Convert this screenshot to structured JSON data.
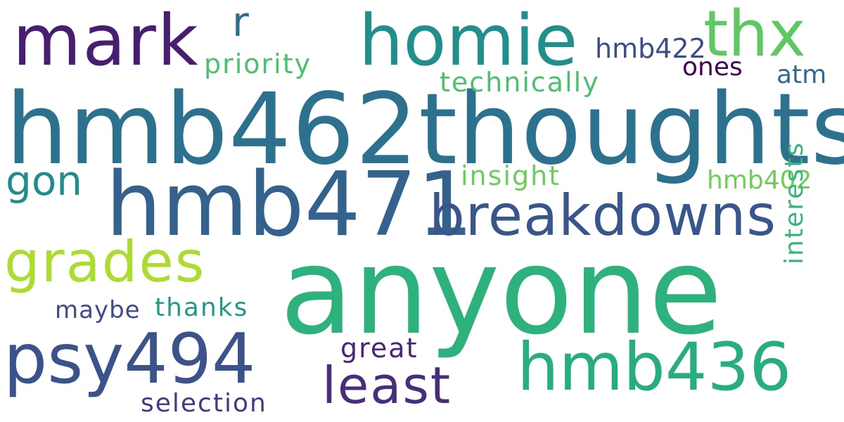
{
  "words": [
    {
      "text": "hmb462thoughts",
      "color": "#2c728e"
    },
    {
      "text": "anyone",
      "color": "#2db27d"
    },
    {
      "text": "hmb471",
      "color": "#33638d"
    },
    {
      "text": "breakdowns",
      "color": "#39568c"
    },
    {
      "text": "homie",
      "color": "#21908d"
    },
    {
      "text": "mark",
      "color": "#481f70"
    },
    {
      "text": "thx",
      "color": "#5ec962"
    },
    {
      "text": "psy494",
      "color": "#3b528b"
    },
    {
      "text": "hmb436",
      "color": "#27ad81"
    },
    {
      "text": "grades",
      "color": "#addc30"
    },
    {
      "text": "least",
      "color": "#472d7b"
    },
    {
      "text": "gon",
      "color": "#228c8d"
    },
    {
      "text": "r",
      "color": "#2e6f8e"
    },
    {
      "text": "priority",
      "color": "#4ac16d"
    },
    {
      "text": "hmb422",
      "color": "#3e4c8a"
    },
    {
      "text": "ones",
      "color": "#440154"
    },
    {
      "text": "technically",
      "color": "#4ac16d"
    },
    {
      "text": "atm",
      "color": "#31688e"
    },
    {
      "text": "insight",
      "color": "#6ccd5a"
    },
    {
      "text": "hmb402",
      "color": "#6ece58"
    },
    {
      "text": "maybe",
      "color": "#3e4a89"
    },
    {
      "text": "thanks",
      "color": "#1f9a8a"
    },
    {
      "text": "great",
      "color": "#482576"
    },
    {
      "text": "selection",
      "color": "#443983"
    },
    {
      "text": "interests",
      "color": "#35b779"
    }
  ]
}
